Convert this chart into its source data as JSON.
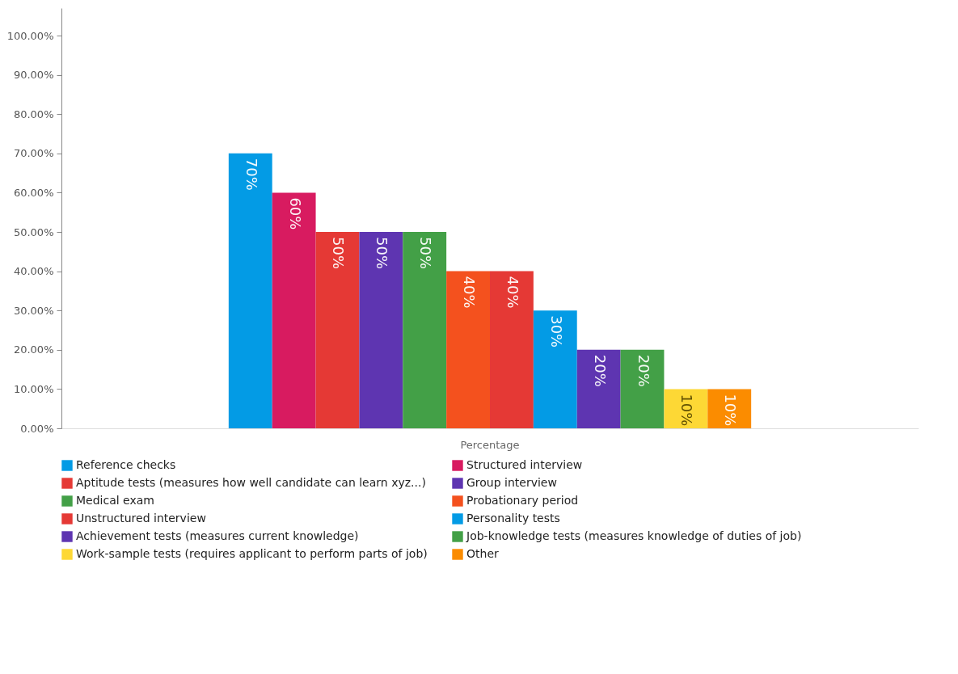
{
  "chart_data": {
    "type": "bar",
    "xlabel": null,
    "categories": [
      "Percentage"
    ],
    "series": [
      {
        "name": "Reference checks",
        "color": "#039be5",
        "values": [
          70
        ],
        "value_labels": [
          "70%"
        ]
      },
      {
        "name": "Structured interview",
        "color": "#d81b60",
        "values": [
          60
        ],
        "value_labels": [
          "60%"
        ]
      },
      {
        "name": "Aptitude tests (measures how well candidate can learn xyz...)",
        "color": "#e53935",
        "values": [
          50
        ],
        "value_labels": [
          "50%"
        ]
      },
      {
        "name": "Group interview",
        "color": "#5e35b1",
        "values": [
          50
        ],
        "value_labels": [
          "50%"
        ]
      },
      {
        "name": "Medical exam",
        "color": "#43a047",
        "values": [
          50
        ],
        "value_labels": [
          "50%"
        ]
      },
      {
        "name": "Probationary period",
        "color": "#f4511e",
        "values": [
          40
        ],
        "value_labels": [
          "40%"
        ]
      },
      {
        "name": "Unstructured interview",
        "color": "#e53935",
        "values": [
          40
        ],
        "value_labels": [
          "40%"
        ]
      },
      {
        "name": "Personality tests",
        "color": "#039be5",
        "values": [
          30
        ],
        "value_labels": [
          "30%"
        ]
      },
      {
        "name": "Achievement tests (measures current knowledge)",
        "color": "#5e35b1",
        "values": [
          20
        ],
        "value_labels": [
          "20%"
        ]
      },
      {
        "name": "Job-knowledge tests (measures knowledge of duties of job)",
        "color": "#43a047",
        "values": [
          20
        ],
        "value_labels": [
          "20%"
        ]
      },
      {
        "name": "Work-sample tests (requires applicant to perform parts of job)",
        "color": "#fdd835",
        "values": [
          10
        ],
        "value_labels": [
          "10%"
        ]
      },
      {
        "name": "Other",
        "color": "#fb8c00",
        "values": [
          10
        ],
        "value_labels": [
          "10%"
        ]
      }
    ],
    "ylim": [
      0,
      107
    ],
    "yticks": [
      {
        "value": 0,
        "label": "0.00%"
      },
      {
        "value": 10,
        "label": "10.00%"
      },
      {
        "value": 20,
        "label": "20.00%"
      },
      {
        "value": 30,
        "label": "30.00%"
      },
      {
        "value": 40,
        "label": "40.00%"
      },
      {
        "value": 50,
        "label": "50.00%"
      },
      {
        "value": 60,
        "label": "60.00%"
      },
      {
        "value": 70,
        "label": "70.00%"
      },
      {
        "value": 80,
        "label": "80.00%"
      },
      {
        "value": 90,
        "label": "90.00%"
      },
      {
        "value": 100,
        "label": "100.00%"
      }
    ],
    "grid": false,
    "legend": "bottom"
  }
}
